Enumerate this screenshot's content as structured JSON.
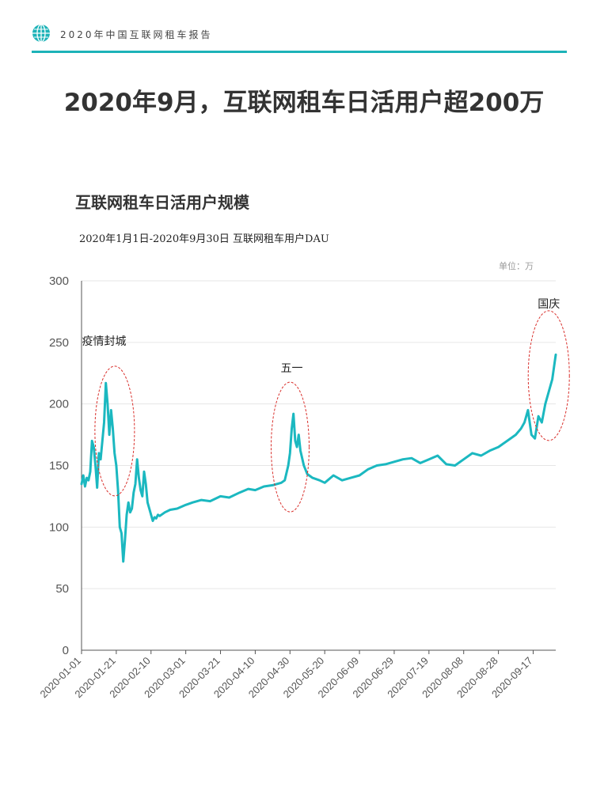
{
  "header": {
    "title": "2020年中国互联网租车报告",
    "icon": "globe-icon",
    "accent_color": "#1db3b8"
  },
  "main_title": "2020年9月，互联网租车日活用户超200万",
  "chart_data": {
    "type": "line",
    "title": "互联网租车日活用户规模",
    "subtitle": "2020年1月1日-2020年9月30日 互联网租车用户DAU",
    "unit": "单位：万",
    "xlabel": "",
    "ylabel": "",
    "ylim": [
      0,
      300
    ],
    "yticks": [
      0,
      50,
      100,
      150,
      200,
      250,
      300
    ],
    "x_range": [
      "2020-01-01",
      "2020-09-30"
    ],
    "xticks": [
      "2020-01-01",
      "2020-01-21",
      "2020-02-10",
      "2020-03-01",
      "2020-03-21",
      "2020-04-10",
      "2020-04-30",
      "2020-05-20",
      "2020-06-09",
      "2020-06-29",
      "2020-07-19",
      "2020-08-08",
      "2020-08-28",
      "2020-09-17"
    ],
    "grid": true,
    "series": [
      {
        "color": "#1bb8c0",
        "x": [
          "2020-01-01",
          "2020-01-02",
          "2020-01-03",
          "2020-01-04",
          "2020-01-05",
          "2020-01-06",
          "2020-01-07",
          "2020-01-08",
          "2020-01-09",
          "2020-01-10",
          "2020-01-11",
          "2020-01-12",
          "2020-01-13",
          "2020-01-14",
          "2020-01-15",
          "2020-01-16",
          "2020-01-17",
          "2020-01-18",
          "2020-01-19",
          "2020-01-20",
          "2020-01-21",
          "2020-01-22",
          "2020-01-23",
          "2020-01-24",
          "2020-01-25",
          "2020-01-26",
          "2020-01-27",
          "2020-01-28",
          "2020-01-29",
          "2020-01-30",
          "2020-01-31",
          "2020-02-01",
          "2020-02-02",
          "2020-02-03",
          "2020-02-04",
          "2020-02-05",
          "2020-02-06",
          "2020-02-07",
          "2020-02-08",
          "2020-02-09",
          "2020-02-10",
          "2020-02-11",
          "2020-02-12",
          "2020-02-13",
          "2020-02-14",
          "2020-02-15",
          "2020-02-18",
          "2020-02-21",
          "2020-02-25",
          "2020-03-01",
          "2020-03-05",
          "2020-03-10",
          "2020-03-15",
          "2020-03-21",
          "2020-03-26",
          "2020-04-01",
          "2020-04-06",
          "2020-04-10",
          "2020-04-15",
          "2020-04-20",
          "2020-04-25",
          "2020-04-27",
          "2020-04-29",
          "2020-04-30",
          "2020-05-01",
          "2020-05-02",
          "2020-05-03",
          "2020-05-04",
          "2020-05-05",
          "2020-05-06",
          "2020-05-08",
          "2020-05-10",
          "2020-05-13",
          "2020-05-17",
          "2020-05-20",
          "2020-05-25",
          "2020-05-30",
          "2020-06-04",
          "2020-06-09",
          "2020-06-14",
          "2020-06-19",
          "2020-06-24",
          "2020-06-29",
          "2020-07-04",
          "2020-07-09",
          "2020-07-14",
          "2020-07-19",
          "2020-07-24",
          "2020-07-29",
          "2020-08-03",
          "2020-08-08",
          "2020-08-13",
          "2020-08-18",
          "2020-08-23",
          "2020-08-28",
          "2020-09-02",
          "2020-09-07",
          "2020-09-10",
          "2020-09-12",
          "2020-09-14",
          "2020-09-16",
          "2020-09-18",
          "2020-09-20",
          "2020-09-22",
          "2020-09-24",
          "2020-09-26",
          "2020-09-28",
          "2020-09-30"
        ],
        "values": [
          135,
          142,
          133,
          140,
          138,
          145,
          170,
          165,
          150,
          132,
          160,
          155,
          170,
          185,
          217,
          200,
          175,
          195,
          180,
          160,
          150,
          130,
          100,
          95,
          72,
          90,
          110,
          120,
          112,
          115,
          128,
          135,
          155,
          140,
          130,
          125,
          145,
          135,
          120,
          115,
          110,
          105,
          108,
          107,
          110,
          109,
          112,
          114,
          115,
          118,
          120,
          122,
          121,
          125,
          124,
          128,
          131,
          130,
          133,
          134,
          136,
          138,
          150,
          160,
          180,
          192,
          170,
          165,
          175,
          162,
          150,
          143,
          140,
          138,
          136,
          142,
          138,
          140,
          142,
          147,
          150,
          151,
          153,
          155,
          156,
          152,
          155,
          158,
          151,
          150,
          155,
          160,
          158,
          162,
          165,
          170,
          175,
          180,
          185,
          195,
          175,
          172,
          190,
          185,
          200,
          210,
          220,
          240
        ]
      }
    ],
    "annotations": [
      {
        "text": "疫情封城",
        "x": "2020-01-21"
      },
      {
        "text": "五一",
        "x": "2020-05-01"
      },
      {
        "text": "国庆",
        "x": "2020-09-26"
      }
    ]
  }
}
